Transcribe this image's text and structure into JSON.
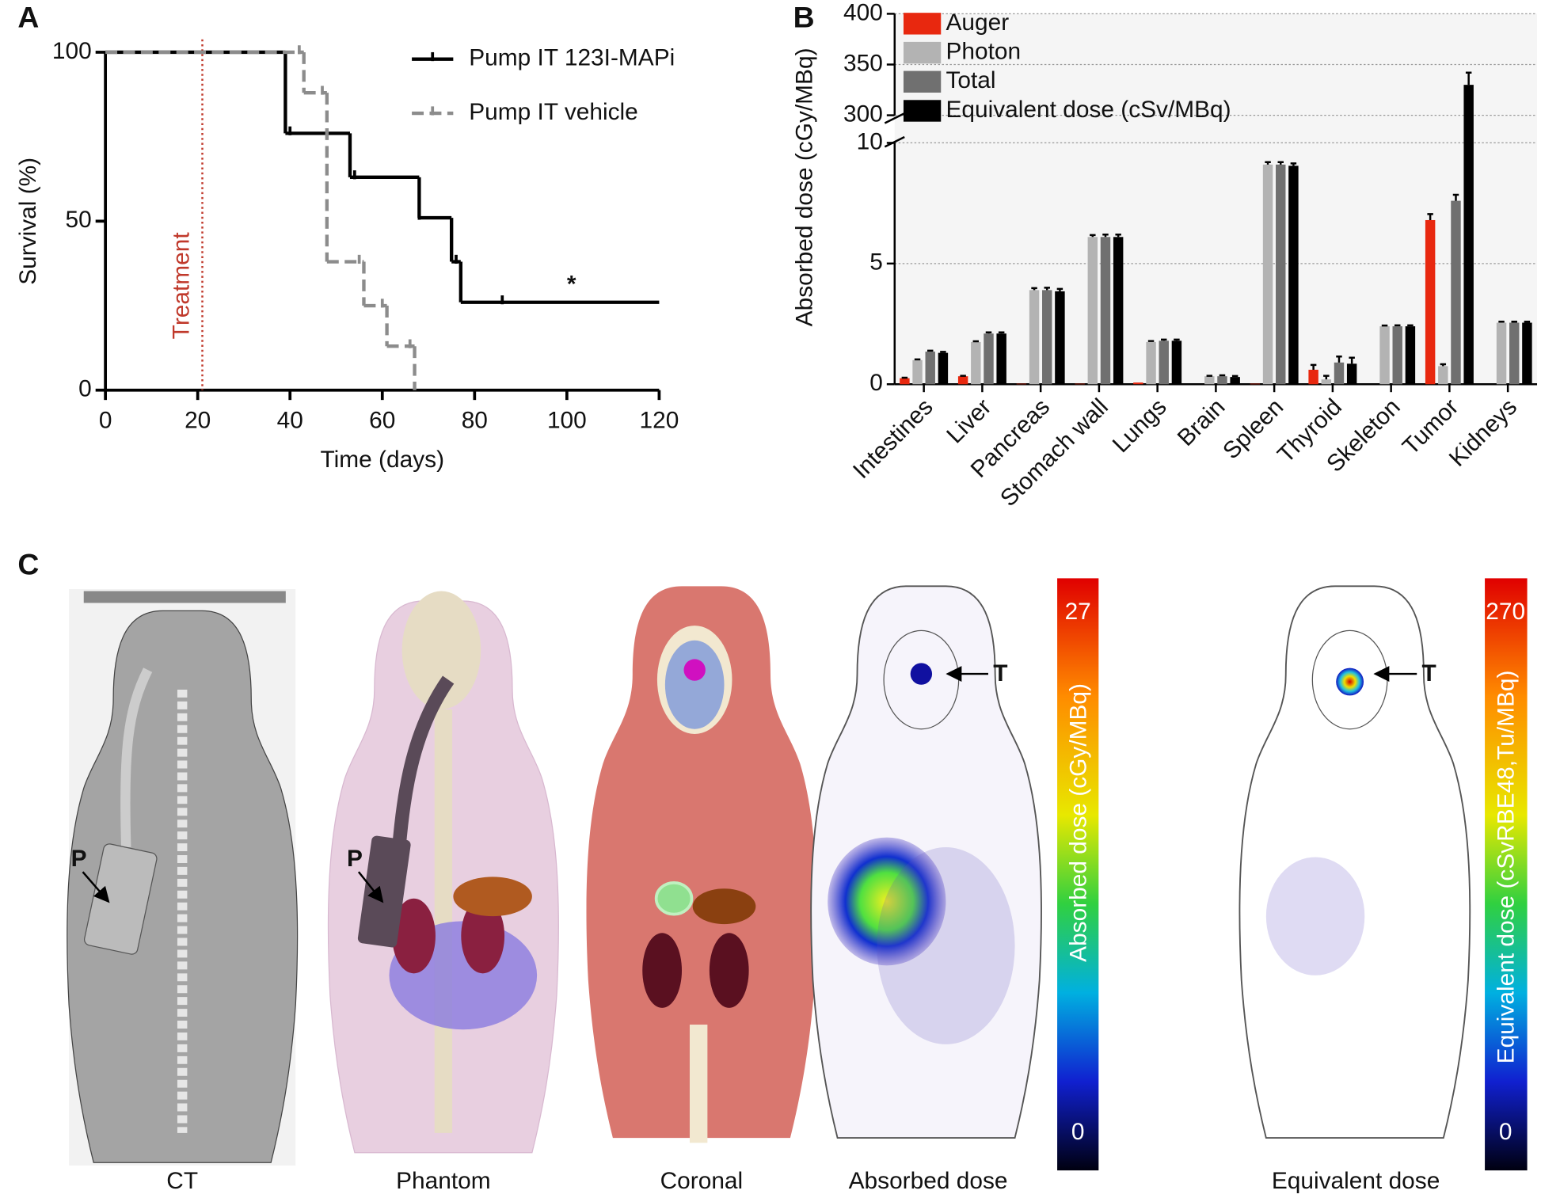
{
  "chart_data": [
    {
      "type": "line",
      "panel_label": "A",
      "xlabel": "Time (days)",
      "ylabel": "Survival (%)",
      "xlim": [
        0,
        120
      ],
      "ylim": [
        0,
        100
      ],
      "xticks": [
        0,
        20,
        40,
        60,
        80,
        100,
        120
      ],
      "yticks": [
        0,
        50,
        100
      ],
      "legend": "upper right",
      "series": [
        {
          "name": "Pump IT 123I-MAPi",
          "color": "#000000",
          "linestyle": "solid",
          "x": [
            0,
            39,
            53,
            68,
            75,
            77,
            120
          ],
          "values": [
            100,
            76,
            63,
            51,
            38,
            26,
            26
          ],
          "censor_x": [
            40,
            54,
            68,
            76,
            86
          ],
          "censor_y": [
            76,
            63,
            51,
            38,
            26
          ]
        },
        {
          "name": "Pump IT vehicle",
          "color": "#8c8c8c",
          "linestyle": "dashed",
          "x": [
            0,
            43,
            48,
            56,
            61,
            67
          ],
          "values": [
            100,
            88,
            38,
            25,
            13,
            0
          ],
          "censor_x": [
            42,
            47,
            55,
            60,
            66
          ],
          "censor_y": [
            100,
            88,
            38,
            25,
            13
          ]
        }
      ],
      "annotations": [
        {
          "text": "Treatment",
          "x": 21,
          "color": "#c0392b"
        },
        {
          "text": "*",
          "x": 101,
          "y": 31
        }
      ]
    },
    {
      "type": "bar",
      "panel_label": "B",
      "ylabel": "Absorbed dose (cGy/MBq)",
      "categories": [
        "Intestines",
        "Liver",
        "Pancreas",
        "Stomach wall",
        "Lungs",
        "Brain",
        "Spleen",
        "Thyroid",
        "Skeleton",
        "Tumor",
        "Kidneys"
      ],
      "ylim": [
        0,
        400
      ],
      "ybreak": [
        10,
        300
      ],
      "yticks": [
        0,
        5,
        10,
        300,
        350,
        400
      ],
      "grid": true,
      "legend": "upper left",
      "series": [
        {
          "name": "Auger",
          "color": "#e8280f",
          "values": [
            0.25,
            0.33,
            0.02,
            0.02,
            0.07,
            0,
            0.02,
            0.6,
            0,
            6.8,
            0
          ],
          "errors": [
            0.02,
            0.02,
            0,
            0,
            0,
            0,
            0,
            0.2,
            0,
            0.25,
            0
          ]
        },
        {
          "name": "Photon",
          "color": "#b3b3b3",
          "values": [
            1.0,
            1.75,
            3.9,
            6.1,
            1.75,
            0.33,
            9.1,
            0.2,
            2.4,
            0.75,
            2.55
          ],
          "errors": [
            0.03,
            0.03,
            0.08,
            0.08,
            0.04,
            0.02,
            0.1,
            0.15,
            0.03,
            0.08,
            0.04
          ]
        },
        {
          "name": "Total",
          "color": "#707070",
          "values": [
            1.35,
            2.1,
            3.9,
            6.1,
            1.8,
            0.33,
            9.1,
            0.9,
            2.4,
            7.6,
            2.55
          ],
          "errors": [
            0.04,
            0.05,
            0.1,
            0.1,
            0.05,
            0.04,
            0.1,
            0.25,
            0.04,
            0.25,
            0.04
          ]
        },
        {
          "name": "Equivalent dose (cSv/MBq)",
          "color": "#000000",
          "values": [
            1.3,
            2.1,
            3.85,
            6.1,
            1.8,
            0.3,
            9.05,
            0.85,
            2.4,
            330,
            2.55
          ],
          "errors": [
            0.04,
            0.05,
            0.1,
            0.1,
            0.05,
            0.04,
            0.1,
            0.25,
            0.04,
            12,
            0.04
          ]
        }
      ]
    }
  ],
  "panel_c": {
    "label": "C",
    "captions": [
      "CT",
      "Phantom",
      "Coronal",
      "Absorbed dose",
      "Equivalent dose"
    ],
    "markers": [
      "P",
      "P",
      "T",
      "T"
    ],
    "colorbars": [
      {
        "label": "Absorbed dose (cGy/MBq)",
        "ticks": [
          0,
          27
        ]
      },
      {
        "label": "Equivalent dose (cSvRBE48,Tu/MBq)",
        "ticks": [
          0,
          270
        ]
      }
    ]
  }
}
